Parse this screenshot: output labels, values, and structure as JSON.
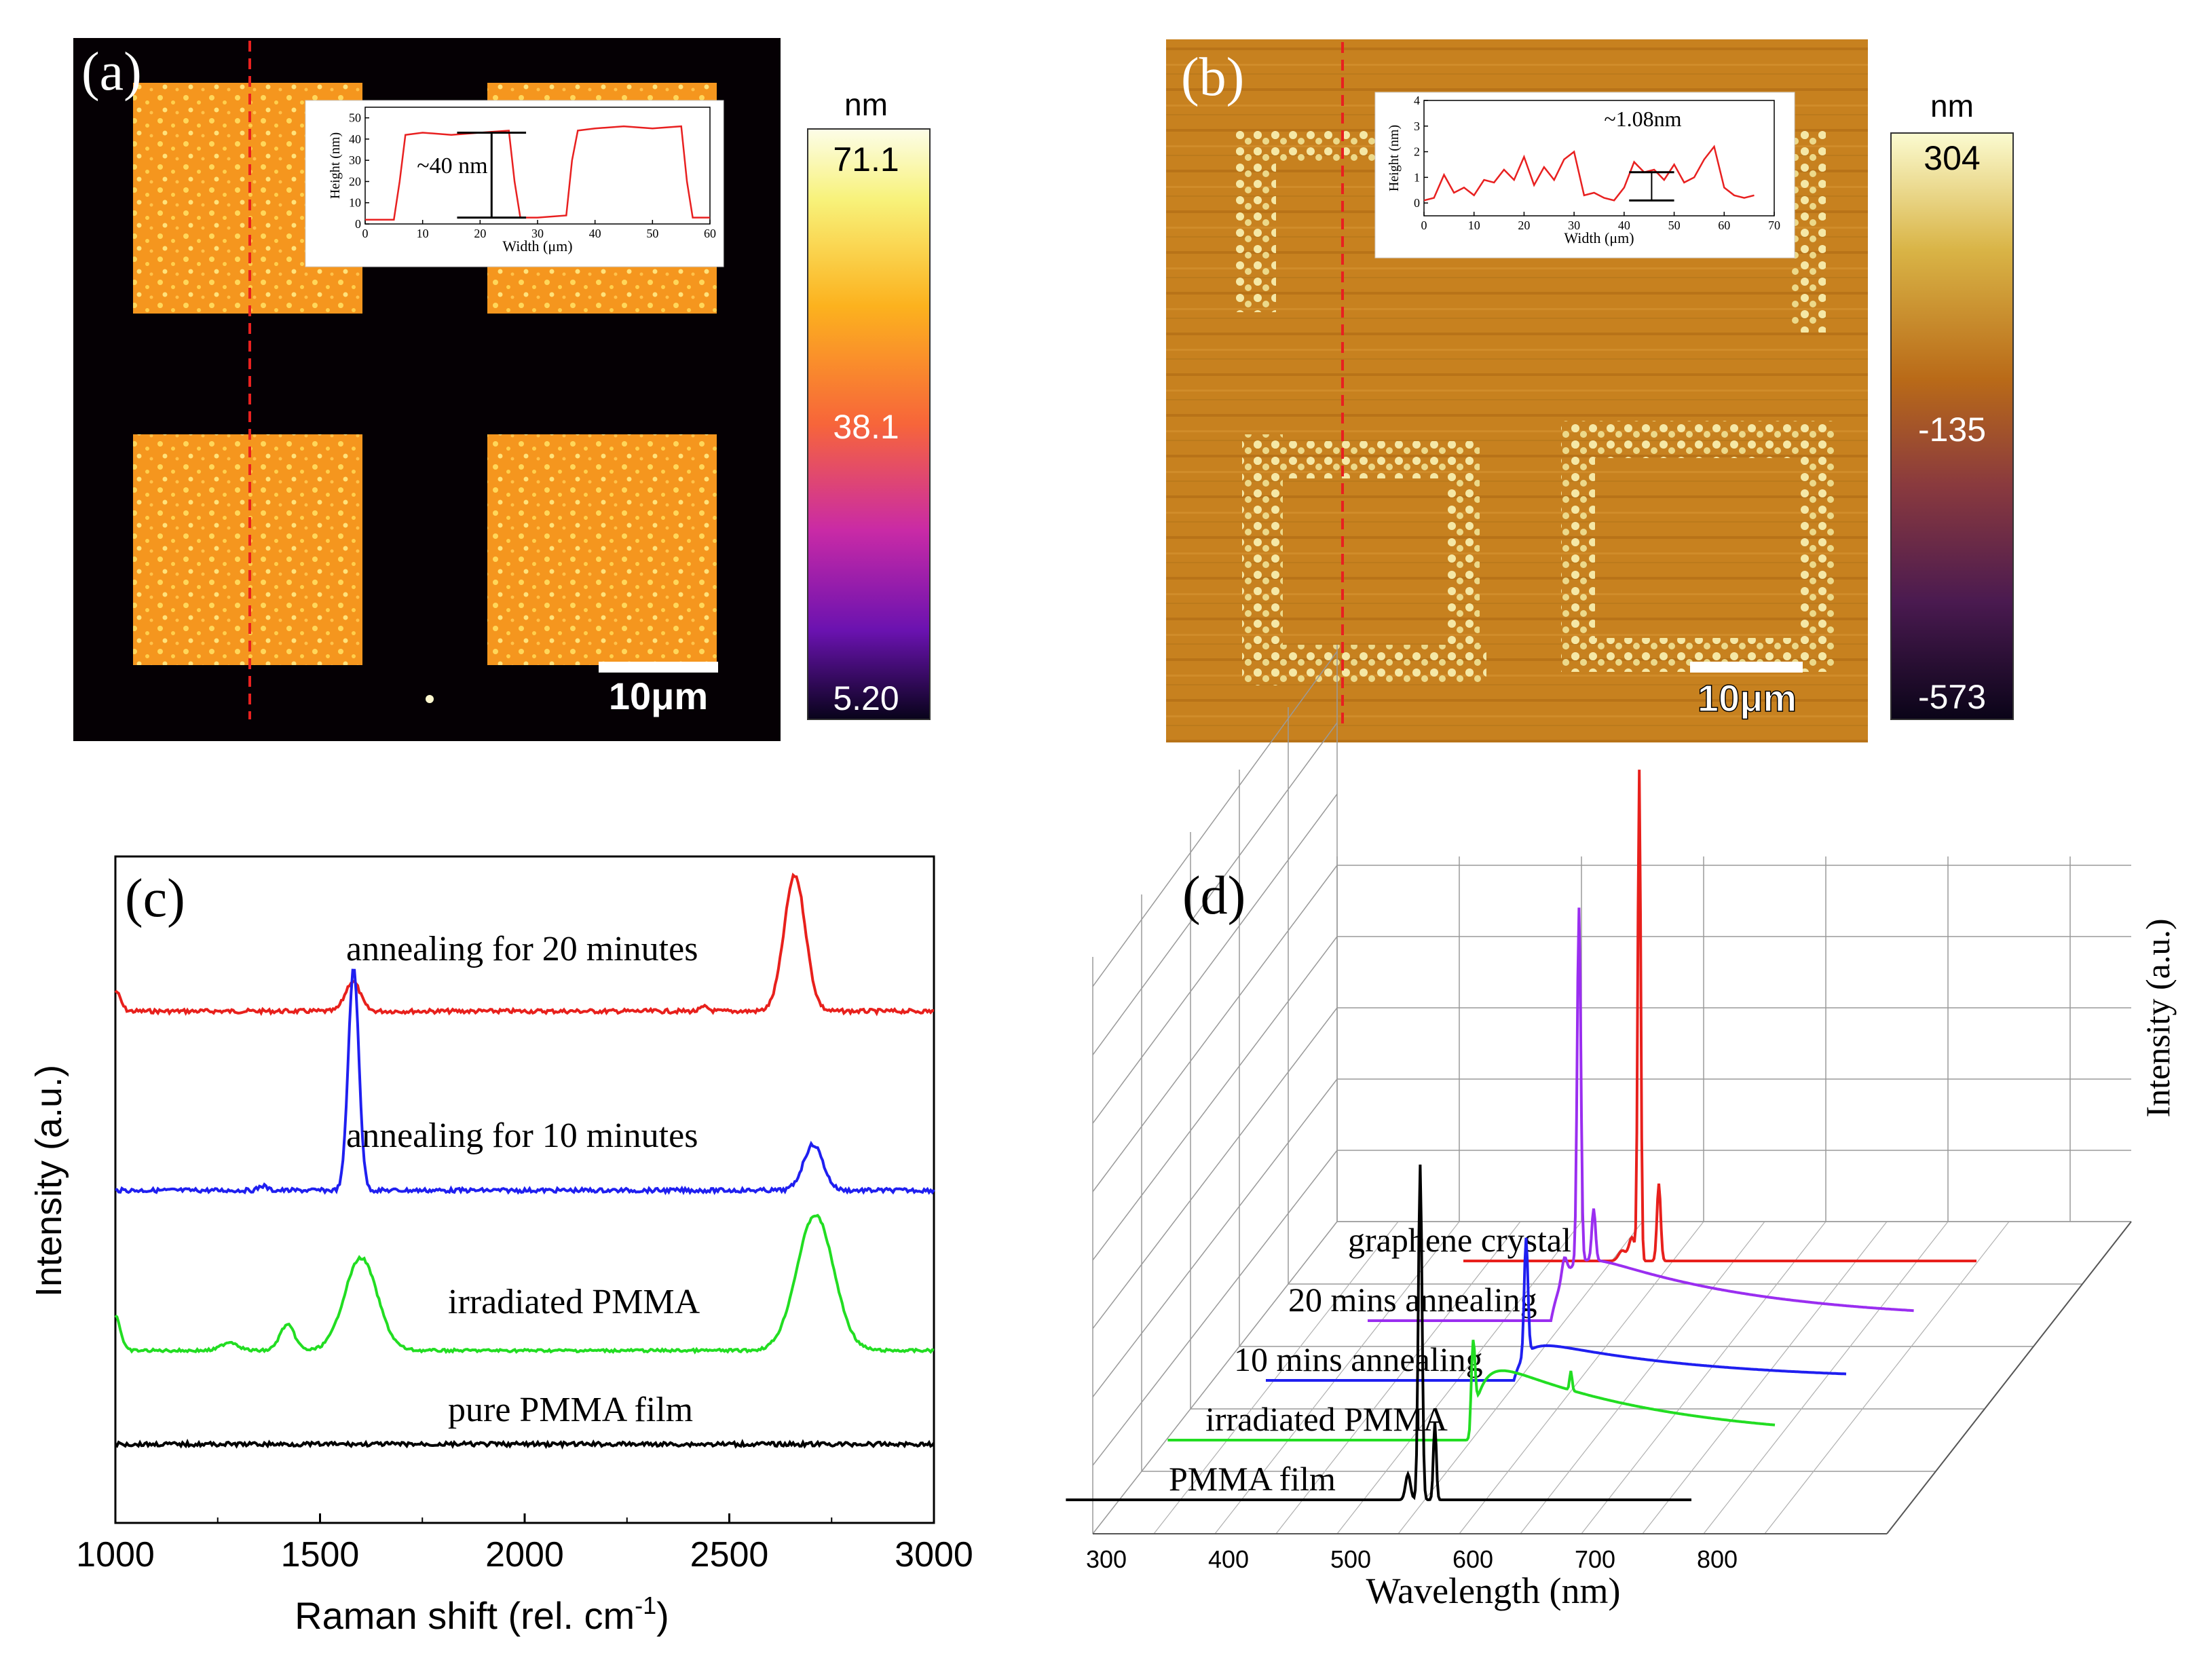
{
  "chart_data": [
    {
      "type": "heatmap",
      "panel": "(a)",
      "scale_bar": "10μm",
      "colorbar": {
        "unit": "nm",
        "ticks": [
          "71.1",
          "38.1",
          "5.20"
        ],
        "max": 71.1,
        "mid": 38.1,
        "min": 5.2
      },
      "colors": {
        "background": "#050004",
        "square": "#f5961e",
        "grain": "#ffd75a",
        "line": "#e82020"
      },
      "inset": {
        "type": "line",
        "xlabel": "Width (μm)",
        "ylabel": "Height (nm)",
        "xticks": [
          "0",
          "10",
          "20",
          "30",
          "40",
          "50",
          "60"
        ],
        "yticks": [
          "0",
          "10",
          "20",
          "30",
          "40",
          "50"
        ],
        "xlim": [
          0,
          60
        ],
        "ylim": [
          0,
          55
        ],
        "annotation": "~40 nm",
        "series": [
          {
            "x": [
              0,
              5,
              6,
              7,
              10,
              15,
              20,
              25,
              26,
              27,
              30,
              35,
              36,
              37,
              40,
              45,
              50,
              55,
              56,
              57,
              60
            ],
            "y": [
              2,
              2,
              20,
              42,
              43,
              42,
              43,
              44,
              20,
              3,
              3,
              4,
              30,
              44,
              45,
              46,
              45,
              46,
              20,
              3,
              3
            ]
          }
        ]
      }
    },
    {
      "type": "heatmap",
      "panel": "(b)",
      "scale_bar": "10μm",
      "colorbar": {
        "unit": "nm",
        "ticks": [
          "304",
          "-135",
          "-573"
        ],
        "max": 304,
        "mid": -135,
        "min": -573
      },
      "colors": {
        "background": "#c7811f",
        "outline": "#f5e8a6",
        "line": "#e82020"
      },
      "inset": {
        "type": "line",
        "xlabel": "Width (μm)",
        "ylabel": "Height (nm)",
        "xticks": [
          "0",
          "10",
          "20",
          "30",
          "40",
          "50",
          "60",
          "70"
        ],
        "yticks": [
          "0",
          "1",
          "2",
          "3",
          "4"
        ],
        "xlim": [
          0,
          70
        ],
        "ylim": [
          -0.5,
          4
        ],
        "annotation": "~1.08nm",
        "series": [
          {
            "x": [
              0,
              2,
              4,
              6,
              8,
              10,
              12,
              14,
              16,
              18,
              20,
              22,
              24,
              26,
              28,
              30,
              32,
              34,
              36,
              38,
              40,
              42,
              44,
              46,
              48,
              50,
              52,
              54,
              56,
              58,
              60,
              62,
              64,
              66
            ],
            "y": [
              0.1,
              0.2,
              1.1,
              0.4,
              0.6,
              0.3,
              0.9,
              0.8,
              1.3,
              0.9,
              1.8,
              0.7,
              1.4,
              0.9,
              1.7,
              2.0,
              0.3,
              0.4,
              0.2,
              0.1,
              0.6,
              1.6,
              1.2,
              1.3,
              0.9,
              1.5,
              0.8,
              1.0,
              1.7,
              2.2,
              0.6,
              0.3,
              0.2,
              0.3
            ]
          }
        ]
      }
    },
    {
      "type": "line",
      "panel": "(c)",
      "xlabel": "Raman shift (rel. cm",
      "xlabel_sup": "-1",
      "xlabel_end": ")",
      "ylabel": "Intensity  (a.u.)",
      "xlim": [
        1000,
        3000
      ],
      "xticks": [
        "1000",
        "1500",
        "2000",
        "2500",
        "3000"
      ],
      "series": [
        {
          "name": "annealing for 20 minutes",
          "color": "#e8201c",
          "offset": 3.0,
          "peaks": [
            [
              1000,
              0.15,
              12
            ],
            [
              1580,
              0.22,
              18
            ],
            [
              2660,
              1.0,
              26
            ],
            [
              2440,
              0.03,
              10
            ]
          ]
        },
        {
          "name": "annealing for 10 minutes",
          "color": "#1f1ff0",
          "offset": 2.0,
          "peaks": [
            [
              1582,
              1.45,
              13
            ],
            [
              2705,
              0.3,
              24
            ],
            [
              1360,
              0.03,
              10
            ]
          ]
        },
        {
          "name": "irradiated PMMA",
          "color": "#22dd22",
          "offset": 1.0,
          "peaks": [
            [
              1000,
              0.25,
              12
            ],
            [
              1600,
              0.65,
              40
            ],
            [
              2710,
              0.95,
              45
            ],
            [
              1420,
              0.18,
              18
            ],
            [
              1280,
              0.06,
              20
            ]
          ]
        },
        {
          "name": "pure PMMA film",
          "color": "#000000",
          "offset": 0.0,
          "peaks": []
        }
      ]
    },
    {
      "type": "line",
      "panel": "(d)",
      "xlabel": "Wavelength (nm)",
      "ylabel": "Intensity (a.u.)",
      "xlim": [
        250,
        850
      ],
      "xticks": [
        "300",
        "400",
        "500",
        "600",
        "700",
        "800"
      ],
      "series": [
        {
          "name": "graphene crystal",
          "color": "#e8201c",
          "depth": 4,
          "peaks": [
            [
              568,
              0.18,
              2.5
            ],
            [
              574,
              3.8,
              1.2
            ],
            [
              590,
              0.6,
              1.5
            ],
            [
              560,
              0.08,
              3
            ]
          ],
          "broad": null
        },
        {
          "name": "20 mins annealing",
          "color": "#9a2ef0",
          "depth": 3,
          "peaks": [
            [
              568,
              2.75,
              1.5
            ],
            [
              580,
              0.4,
              1.5
            ],
            [
              556,
              0.15,
              2
            ]
          ],
          "broad": [
            545,
            0.65,
            40,
            140
          ]
        },
        {
          "name": "10 mins annealing",
          "color": "#1f1ff0",
          "depth": 2,
          "peaks": [
            [
              568,
              0.9,
              1.5
            ]
          ],
          "broad": [
            558,
            0.35,
            30,
            140
          ]
        },
        {
          "name": "irradiated PMMA",
          "color": "#22dd22",
          "depth": 1,
          "peaks": [
            [
              568,
              0.6,
              1.5
            ],
            [
              648,
              0.15,
              1
            ]
          ],
          "broad": [
            565,
            0.7,
            30,
            140
          ]
        },
        {
          "name": "PMMA film",
          "color": "#000000",
          "depth": 0,
          "peaks": [
            [
              568,
              2.6,
              1.5
            ],
            [
              580,
              0.6,
              1.2
            ],
            [
              558,
              0.2,
              2
            ]
          ],
          "broad": null
        }
      ]
    }
  ]
}
